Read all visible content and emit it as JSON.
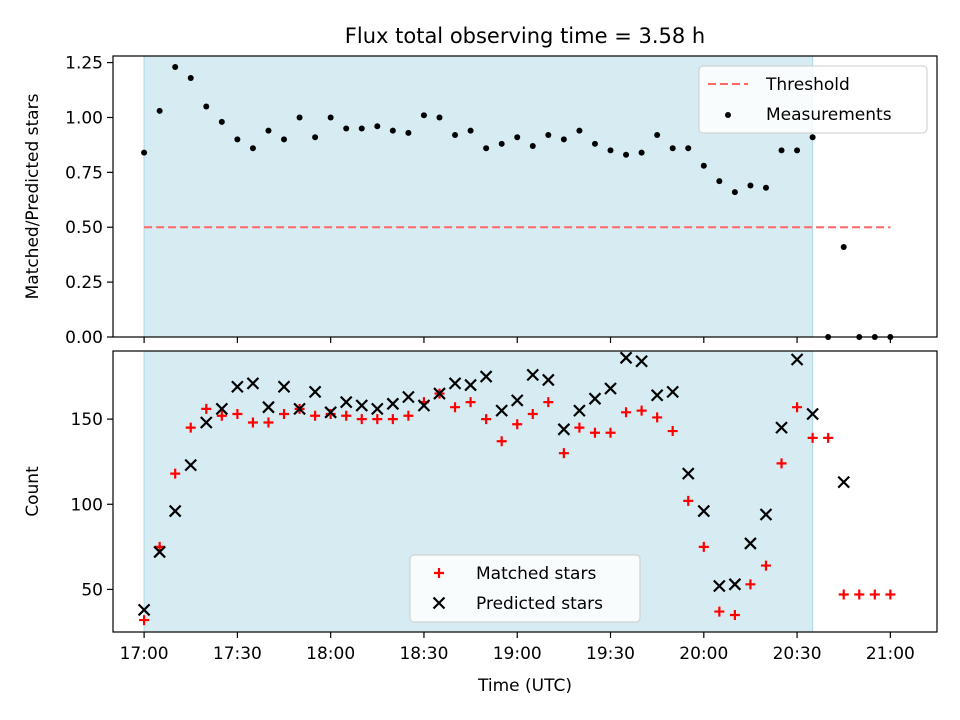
{
  "title": "Flux total observing time = 3.58 h",
  "colors": {
    "band": "#add8e6",
    "threshold": "#ff6666",
    "matched": "#ff0000",
    "predicted": "#000000",
    "measurement": "#000000"
  },
  "chart_data": [
    {
      "type": "scatter",
      "ylabel": "Matched/Predicted stars",
      "ylim": [
        0,
        1.28
      ],
      "yticks": [
        0.0,
        0.25,
        0.5,
        0.75,
        1.0,
        1.25
      ],
      "ytick_labels": [
        "0.00",
        "0.25",
        "0.50",
        "0.75",
        "1.00",
        "1.25"
      ],
      "xlim_min": [
        -10,
        255
      ],
      "shaded_span_min": [
        0,
        215
      ],
      "legend": {
        "placement": "upper right",
        "entries": [
          "Threshold",
          "Measurements"
        ]
      },
      "series": [
        {
          "name": "Threshold",
          "kind": "dashed-line",
          "x": [
            0,
            240
          ],
          "y": [
            0.5,
            0.5
          ]
        },
        {
          "name": "Measurements",
          "kind": "dot",
          "x": [
            0,
            5,
            10,
            15,
            20,
            25,
            30,
            35,
            40,
            45,
            50,
            55,
            60,
            65,
            70,
            75,
            80,
            85,
            90,
            95,
            100,
            105,
            110,
            115,
            120,
            125,
            130,
            135,
            140,
            145,
            150,
            155,
            160,
            165,
            170,
            175,
            180,
            185,
            190,
            195,
            200,
            205,
            210,
            215,
            220,
            225,
            230,
            235,
            240
          ],
          "y": [
            0.84,
            1.03,
            1.23,
            1.18,
            1.05,
            0.98,
            0.9,
            0.86,
            0.94,
            0.9,
            1.0,
            0.91,
            1.0,
            0.95,
            0.95,
            0.96,
            0.94,
            0.93,
            1.01,
            1.0,
            0.92,
            0.94,
            0.86,
            0.88,
            0.91,
            0.87,
            0.92,
            0.9,
            0.94,
            0.88,
            0.85,
            0.83,
            0.84,
            0.92,
            0.86,
            0.86,
            0.78,
            0.71,
            0.66,
            0.69,
            0.68,
            0.85,
            0.85,
            0.91,
            0.0,
            0.41,
            0.0,
            0.0,
            0.0
          ]
        }
      ]
    },
    {
      "type": "scatter",
      "ylabel": "Count",
      "xlabel": "Time (UTC)",
      "ylim": [
        25,
        190
      ],
      "yticks": [
        50,
        100,
        150
      ],
      "ytick_labels": [
        "50",
        "100",
        "150"
      ],
      "xlim_min": [
        -10,
        255
      ],
      "shaded_span_min": [
        0,
        215
      ],
      "xticks_min": [
        0,
        30,
        60,
        90,
        120,
        150,
        180,
        210,
        240
      ],
      "xtick_labels": [
        "17:00",
        "17:30",
        "18:00",
        "18:30",
        "19:00",
        "19:30",
        "20:00",
        "20:30",
        "21:00"
      ],
      "legend": {
        "placement": "lower center",
        "entries": [
          "Matched stars",
          "Predicted stars"
        ]
      },
      "series": [
        {
          "name": "Matched stars",
          "kind": "plus",
          "x": [
            0,
            5,
            10,
            15,
            20,
            25,
            30,
            35,
            40,
            45,
            50,
            55,
            60,
            65,
            70,
            75,
            80,
            85,
            90,
            95,
            100,
            105,
            110,
            115,
            120,
            125,
            130,
            135,
            140,
            145,
            150,
            155,
            160,
            165,
            170,
            175,
            180,
            185,
            190,
            195,
            200,
            205,
            210,
            215,
            220,
            225,
            230,
            235,
            240
          ],
          "y": [
            32,
            75,
            118,
            145,
            156,
            152,
            153,
            148,
            148,
            153,
            156,
            152,
            153,
            152,
            150,
            150,
            150,
            152,
            160,
            165,
            157,
            160,
            150,
            137,
            147,
            153,
            160,
            130,
            145,
            142,
            142,
            154,
            155,
            151,
            143,
            102,
            75,
            37,
            35,
            53,
            64,
            124,
            157,
            139,
            139,
            47,
            47,
            47,
            47
          ]
        },
        {
          "name": "Predicted stars",
          "kind": "cross",
          "x": [
            0,
            5,
            10,
            15,
            20,
            25,
            30,
            35,
            40,
            45,
            50,
            55,
            60,
            65,
            70,
            75,
            80,
            85,
            90,
            95,
            100,
            105,
            110,
            115,
            120,
            125,
            130,
            135,
            140,
            145,
            150,
            155,
            160,
            165,
            170,
            175,
            180,
            185,
            190,
            195,
            200,
            205,
            210,
            215,
            225
          ],
          "y": [
            38,
            72,
            96,
            123,
            148,
            156,
            169,
            171,
            157,
            169,
            156,
            166,
            154,
            160,
            158,
            156,
            159,
            163,
            158,
            165,
            171,
            170,
            175,
            155,
            161,
            176,
            173,
            144,
            155,
            162,
            168,
            186,
            184,
            164,
            166,
            118,
            96,
            52,
            53,
            77,
            94,
            145,
            185,
            153,
            113
          ]
        }
      ]
    }
  ]
}
